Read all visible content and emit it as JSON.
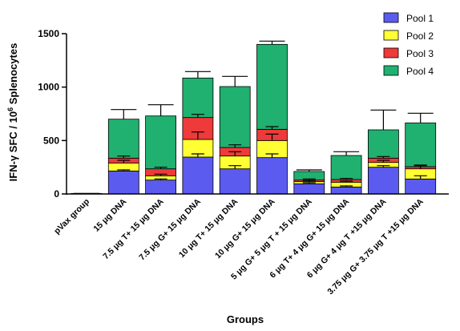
{
  "chart_data": {
    "type": "bar",
    "stacked": true,
    "xlabel": "Groups",
    "ylabel_main": "IFN-γ SFC / 10",
    "ylabel_sup": "6",
    "ylabel_tail": " Splenocytes",
    "ylim": [
      0,
      1500
    ],
    "yticks": [
      0,
      500,
      1000,
      1500
    ],
    "legend_position": "top-right",
    "categories": [
      "pVax group",
      "15 μg DNA",
      "7.5 μg T+ 15 μg DNA",
      "7.5 μg G+ 15 μg DNA",
      "10 μg T+ 15 μg DNA",
      "10 μg G+ 15 μg DNA",
      "5 μg G+ 5 μg T + 15 μg DNA",
      "6 μg T+ 4 μg G+ 15 μg DNA",
      "6 μg G+ 4 μg T +15 μg DNA",
      "3.75 μg G+ 3.75 μg T +15 μg DNA"
    ],
    "series": [
      {
        "name": "Pool 1",
        "color": "#5b5bf0",
        "values": [
          5,
          215,
          130,
          345,
          235,
          340,
          95,
          65,
          250,
          140
        ]
      },
      {
        "name": "Pool 2",
        "color": "#ffff33",
        "values": [
          0,
          75,
          40,
          165,
          120,
          160,
          20,
          45,
          45,
          95
        ]
      },
      {
        "name": "Pool 3",
        "color": "#ee3a3a",
        "values": [
          0,
          45,
          65,
          205,
          80,
          105,
          15,
          25,
          40,
          20
        ]
      },
      {
        "name": "Pool 4",
        "color": "#20b070",
        "values": [
          0,
          365,
          495,
          370,
          570,
          795,
          80,
          225,
          265,
          410
        ]
      }
    ],
    "error_bar_tops": [
      5,
      790,
      835,
      1145,
      1100,
      1430,
      225,
      395,
      785,
      755
    ],
    "inner_error_bars": [
      {
        "series": 0,
        "values": [
          null,
          10,
          10,
          30,
          30,
          35,
          10,
          10,
          15,
          30
        ]
      },
      {
        "series": 1,
        "values": [
          null,
          25,
          15,
          70,
          40,
          60,
          10,
          10,
          20,
          30
        ]
      },
      {
        "series": 2,
        "values": [
          null,
          20,
          15,
          30,
          25,
          25,
          10,
          10,
          15,
          15
        ]
      }
    ]
  }
}
